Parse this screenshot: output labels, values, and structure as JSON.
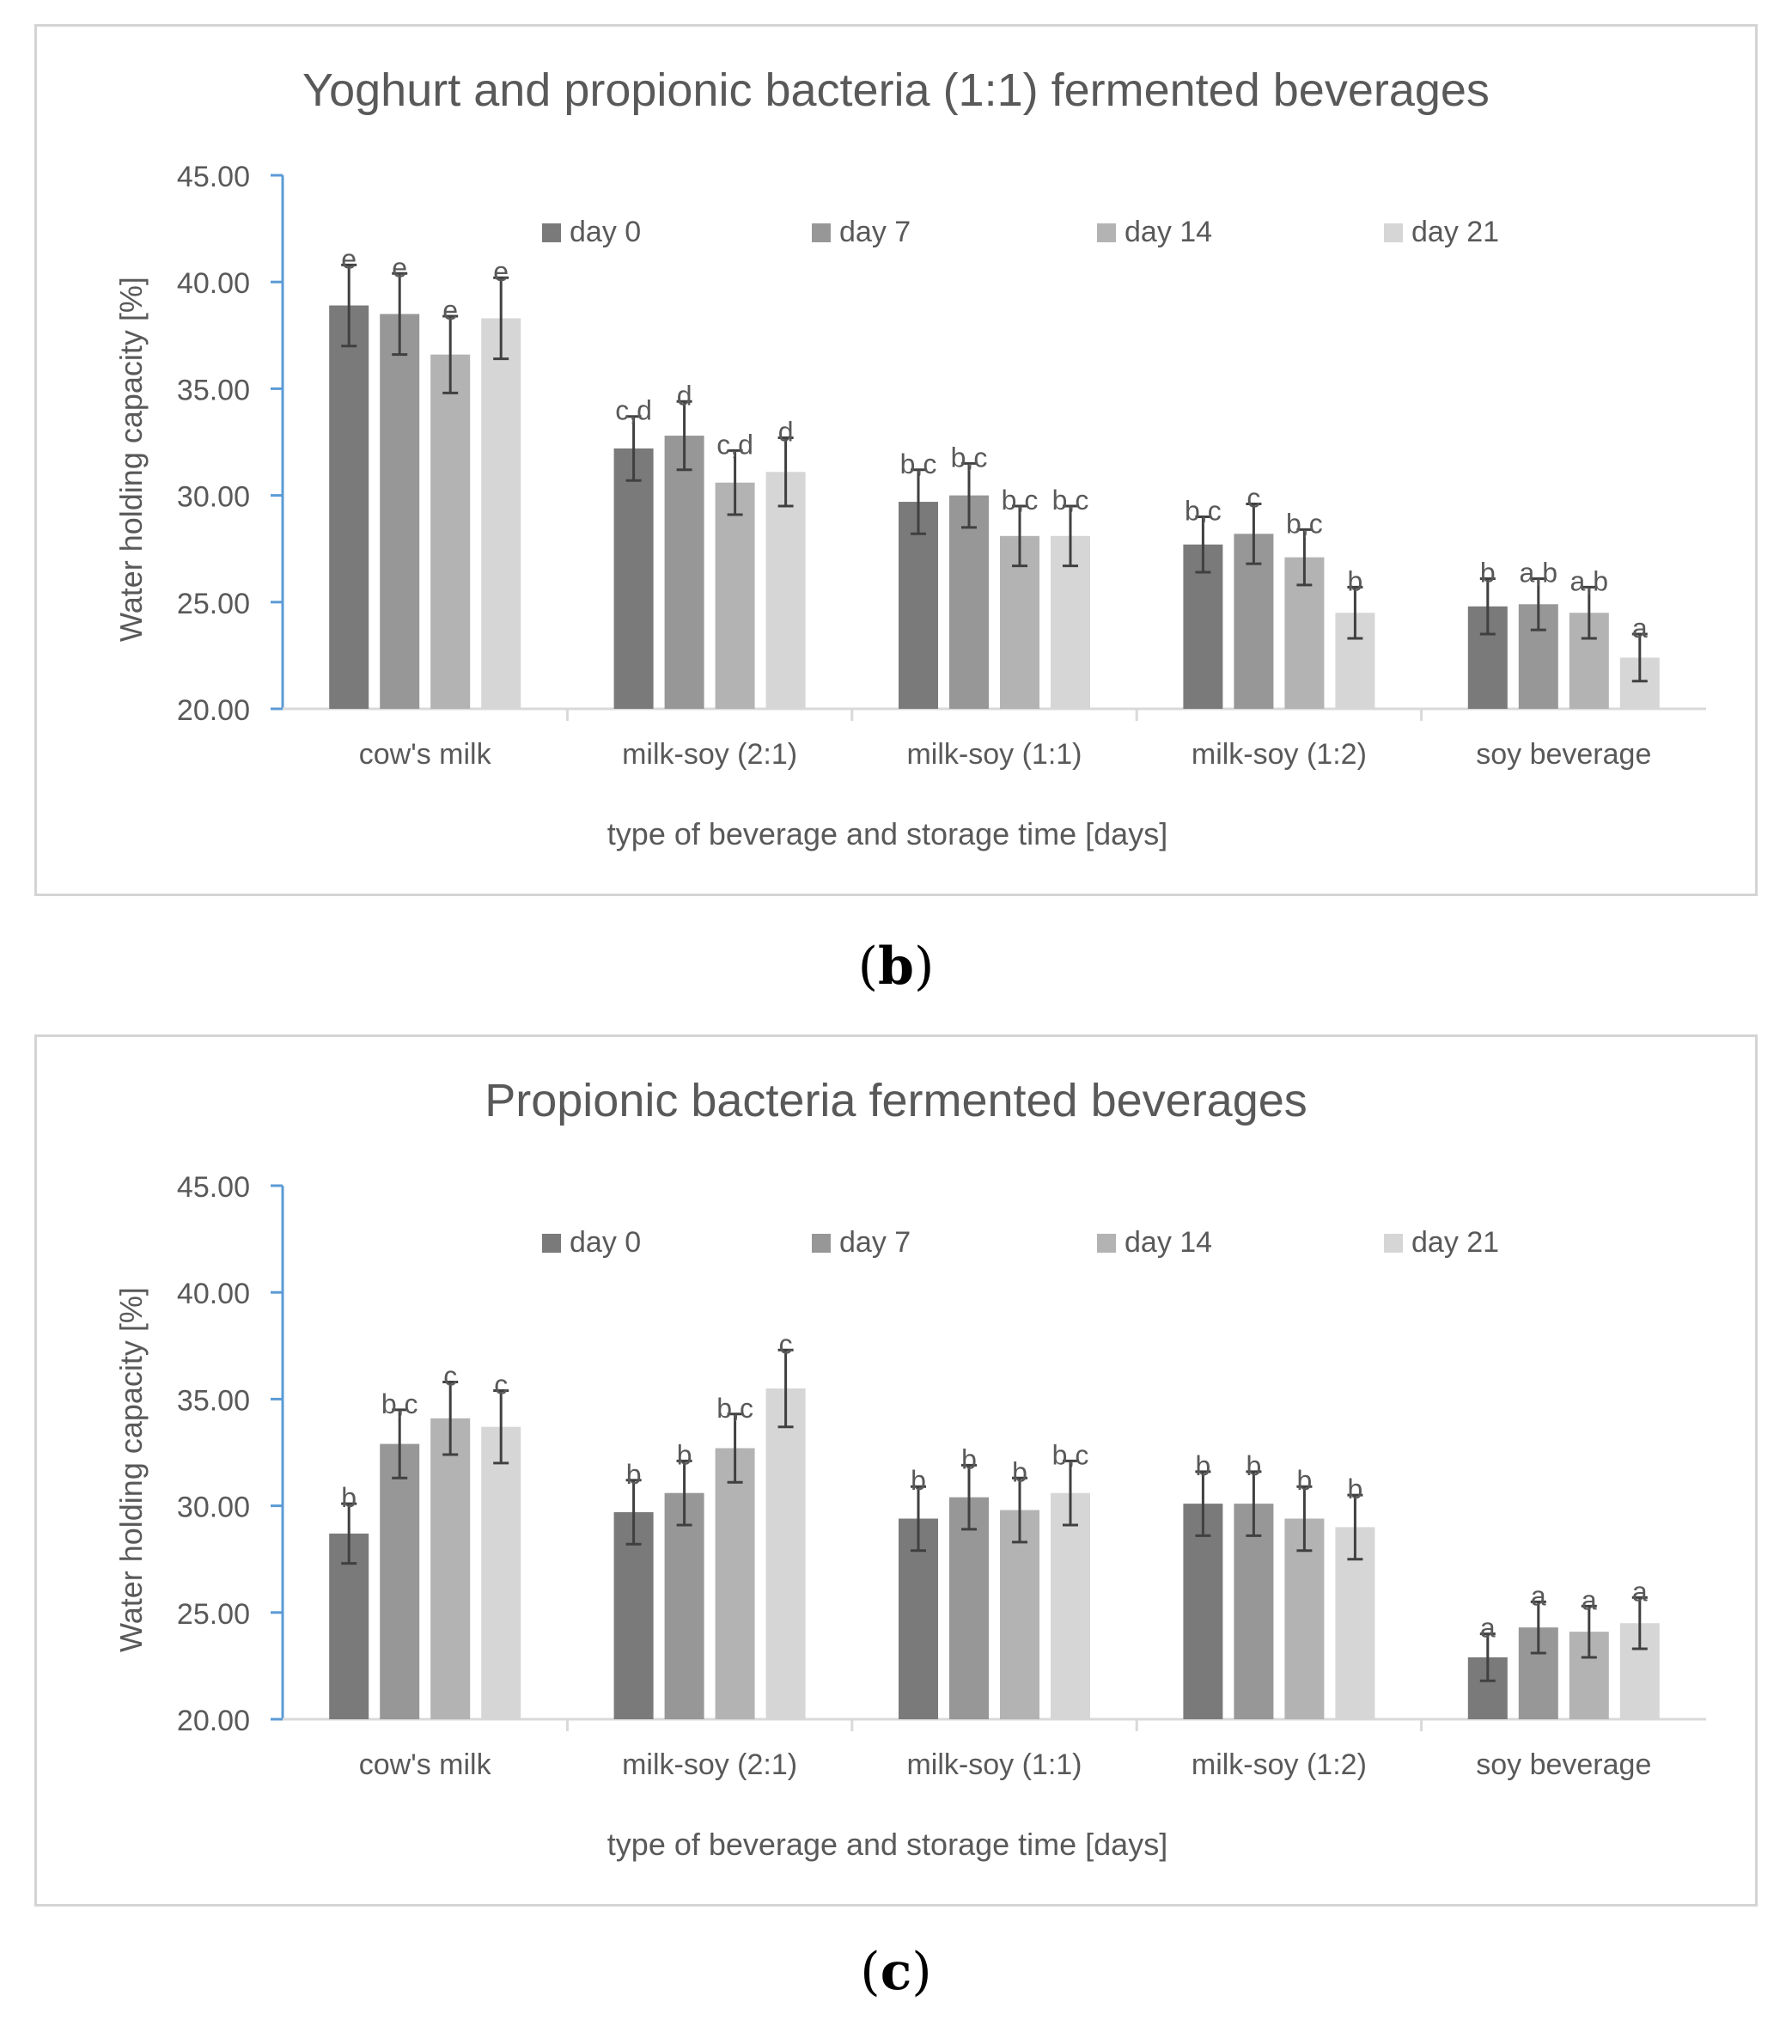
{
  "colors": {
    "day0": "#7a7a7a",
    "day7": "#979797",
    "day14": "#b3b3b3",
    "day21": "#d6d6d6",
    "axis": "#5b9bd5",
    "grid": "#d9d9d9",
    "text": "#595959",
    "error": "#404040"
  },
  "captions": {
    "b": "b",
    "c": "c"
  },
  "chart_data": [
    {
      "type": "bar",
      "title": "Yoghurt and propionic bacteria (1:1) fermented beverages",
      "xlabel": "type of beverage and storage time [days]",
      "ylabel": "Water holding capacity [%]",
      "ylim": [
        20,
        45
      ],
      "yticks": [
        "20.00",
        "25.00",
        "30.00",
        "35.00",
        "40.00",
        "45.00"
      ],
      "legend": "top",
      "categories": [
        "cow's milk",
        "milk-soy (2:1)",
        "milk-soy (1:1)",
        "milk-soy (1:2)",
        "soy beverage"
      ],
      "series": [
        {
          "name": "day 0",
          "values": [
            38.9,
            32.2,
            29.7,
            27.7,
            24.8
          ],
          "errors": [
            1.9,
            1.5,
            1.5,
            1.3,
            1.3
          ],
          "labels": [
            "e",
            "c,d",
            "b,c",
            "b,c",
            "b"
          ]
        },
        {
          "name": "day 7",
          "values": [
            38.5,
            32.8,
            30.0,
            28.2,
            24.9
          ],
          "errors": [
            1.9,
            1.6,
            1.5,
            1.4,
            1.2
          ],
          "labels": [
            "e",
            "d",
            "b,c",
            "c",
            "a,b"
          ]
        },
        {
          "name": "day 14",
          "values": [
            36.6,
            30.6,
            28.1,
            27.1,
            24.5
          ],
          "errors": [
            1.8,
            1.5,
            1.4,
            1.3,
            1.2
          ],
          "labels": [
            "e",
            "c,d",
            "b,c",
            "b,c",
            "a,b"
          ]
        },
        {
          "name": "day 21",
          "values": [
            38.3,
            31.1,
            28.1,
            24.5,
            22.4
          ],
          "errors": [
            1.9,
            1.6,
            1.4,
            1.2,
            1.1
          ],
          "labels": [
            "e",
            "d",
            "b,c",
            "b",
            "a"
          ]
        }
      ]
    },
    {
      "type": "bar",
      "title": "Propionic bacteria fermented beverages",
      "xlabel": "type of beverage and storage time [days]",
      "ylabel": "Water holding capacity [%]",
      "ylim": [
        20,
        45
      ],
      "yticks": [
        "20.00",
        "25.00",
        "30.00",
        "35.00",
        "40.00",
        "45.00"
      ],
      "legend": "top",
      "categories": [
        "cow's milk",
        "milk-soy (2:1)",
        "milk-soy (1:1)",
        "milk-soy (1:2)",
        "soy beverage"
      ],
      "series": [
        {
          "name": "day 0",
          "values": [
            28.7,
            29.7,
            29.4,
            30.1,
            22.9
          ],
          "errors": [
            1.4,
            1.5,
            1.5,
            1.5,
            1.1
          ],
          "labels": [
            "b",
            "b",
            "b",
            "b",
            "a"
          ]
        },
        {
          "name": "day 7",
          "values": [
            32.9,
            30.6,
            30.4,
            30.1,
            24.3
          ],
          "errors": [
            1.6,
            1.5,
            1.5,
            1.5,
            1.2
          ],
          "labels": [
            "b,c",
            "b",
            "b",
            "b",
            "a"
          ]
        },
        {
          "name": "day 14",
          "values": [
            34.1,
            32.7,
            29.8,
            29.4,
            24.1
          ],
          "errors": [
            1.7,
            1.6,
            1.5,
            1.5,
            1.2
          ],
          "labels": [
            "c",
            "b,c",
            "b",
            "b",
            "a"
          ]
        },
        {
          "name": "day 21",
          "values": [
            33.7,
            35.5,
            30.6,
            29.0,
            24.5
          ],
          "errors": [
            1.7,
            1.8,
            1.5,
            1.5,
            1.2
          ],
          "labels": [
            "c",
            "c",
            "b,c",
            "b",
            "a"
          ]
        }
      ]
    }
  ]
}
